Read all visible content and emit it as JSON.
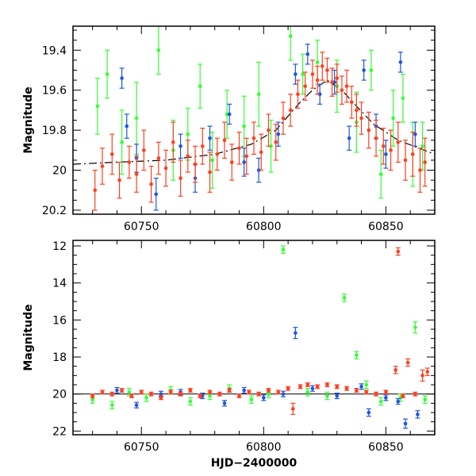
{
  "colors": {
    "green": "#33ff33",
    "blue": "#1f55dd",
    "red": "#ff3f20",
    "curve": "#000000",
    "frame": "#000000"
  },
  "chart_data": [
    {
      "type": "scatter",
      "panel": "top",
      "title": "",
      "xlabel": "",
      "ylabel": "Magnitude",
      "xlim": [
        60722,
        60870
      ],
      "ylim": [
        20.22,
        19.28
      ],
      "y_inverted": true,
      "x_ticks": [
        60750,
        60800,
        60850
      ],
      "y_ticks": [
        19.4,
        19.6,
        19.8,
        20,
        20.2
      ],
      "x_tick_labels": [
        "60750",
        "60800",
        "60850"
      ],
      "y_tick_labels": [
        "19.4",
        "19.6",
        "19.8",
        "20",
        "20.2"
      ],
      "grid": false,
      "legend": "none",
      "model_curve": {
        "style": "dashed-solid",
        "baseline": 19.98,
        "peak_x": 60826,
        "peak_mag": 19.55,
        "tau_days": 16,
        "x": [
          60722,
          60740,
          60760,
          60780,
          60795,
          60805,
          60815,
          60820,
          60826,
          60832,
          60838,
          60845,
          60855,
          60870
        ],
        "y": [
          19.97,
          19.96,
          19.95,
          19.92,
          19.87,
          19.8,
          19.66,
          19.6,
          19.55,
          19.6,
          19.68,
          19.77,
          19.85,
          19.92
        ]
      },
      "series": [
        {
          "color": "green",
          "points": [
            [
              60732,
              19.68,
              0.14
            ],
            [
              60736,
              19.52,
              0.12
            ],
            [
              60742,
              19.86,
              0.16
            ],
            [
              60748,
              19.74,
              0.18
            ],
            [
              60757,
              19.4,
              0.12
            ],
            [
              60763,
              19.9,
              0.15
            ],
            [
              60769,
              19.82,
              0.13
            ],
            [
              60774,
              19.58,
              0.11
            ],
            [
              60779,
              19.95,
              0.14
            ],
            [
              60785,
              19.72,
              0.12
            ],
            [
              60792,
              19.78,
              0.15
            ],
            [
              60798,
              19.62,
              0.16
            ],
            [
              60803,
              19.88,
              0.13
            ],
            [
              60811,
              19.33,
              0.12
            ],
            [
              60816,
              19.52,
              0.1
            ],
            [
              60822,
              19.46,
              0.11
            ],
            [
              60830,
              19.58,
              0.13
            ],
            [
              60838,
              19.76,
              0.15
            ],
            [
              60844,
              19.5,
              0.1
            ],
            [
              60848,
              20.02,
              0.12
            ],
            [
              60853,
              19.74,
              0.14
            ],
            [
              60857,
              19.64,
              0.12
            ],
            [
              60861,
              19.92,
              0.16
            ],
            [
              60865,
              19.88,
              0.12
            ]
          ]
        },
        {
          "color": "blue",
          "points": [
            [
              60742,
              19.54,
              0.05
            ],
            [
              60744,
              19.78,
              0.06
            ],
            [
              60748,
              19.94,
              0.07
            ],
            [
              60756,
              20.12,
              0.08
            ],
            [
              60766,
              19.88,
              0.06
            ],
            [
              60772,
              20.04,
              0.07
            ],
            [
              60778,
              19.84,
              0.06
            ],
            [
              60786,
              19.72,
              0.05
            ],
            [
              60792,
              19.96,
              0.07
            ],
            [
              60798,
              20.0,
              0.06
            ],
            [
              60806,
              19.82,
              0.06
            ],
            [
              60813,
              19.52,
              0.05
            ],
            [
              60818,
              19.42,
              0.05
            ],
            [
              60823,
              19.62,
              0.05
            ],
            [
              60829,
              19.56,
              0.06
            ],
            [
              60835,
              19.84,
              0.06
            ],
            [
              60841,
              19.5,
              0.05
            ],
            [
              60846,
              19.78,
              0.06
            ],
            [
              60850,
              19.92,
              0.07
            ],
            [
              60856,
              19.46,
              0.05
            ],
            [
              60862,
              19.82,
              0.06
            ]
          ]
        },
        {
          "color": "red",
          "points": [
            [
              60731,
              20.1,
              0.1
            ],
            [
              60734,
              19.98,
              0.09
            ],
            [
              60738,
              19.92,
              0.1
            ],
            [
              60741,
              20.05,
              0.09
            ],
            [
              60745,
              19.96,
              0.08
            ],
            [
              60748,
              20.02,
              0.09
            ],
            [
              60751,
              19.9,
              0.1
            ],
            [
              60754,
              20.07,
              0.09
            ],
            [
              60757,
              19.94,
              0.08
            ],
            [
              60760,
              19.99,
              0.09
            ],
            [
              60763,
              19.86,
              0.1
            ],
            [
              60766,
              20.04,
              0.09
            ],
            [
              60769,
              19.93,
              0.08
            ],
            [
              60772,
              19.97,
              0.09
            ],
            [
              60775,
              19.88,
              0.09
            ],
            [
              60778,
              20.01,
              0.1
            ],
            [
              60781,
              19.92,
              0.08
            ],
            [
              60784,
              19.85,
              0.09
            ],
            [
              60787,
              19.96,
              0.09
            ],
            [
              60790,
              19.89,
              0.08
            ],
            [
              60793,
              19.93,
              0.09
            ],
            [
              60796,
              19.84,
              0.08
            ],
            [
              60799,
              19.91,
              0.09
            ],
            [
              60802,
              19.8,
              0.08
            ],
            [
              60805,
              19.86,
              0.09
            ],
            [
              60808,
              19.74,
              0.08
            ],
            [
              60811,
              19.7,
              0.08
            ],
            [
              60814,
              19.62,
              0.07
            ],
            [
              60817,
              19.58,
              0.07
            ],
            [
              60820,
              19.52,
              0.07
            ],
            [
              60822,
              19.55,
              0.07
            ],
            [
              60824,
              19.48,
              0.07
            ],
            [
              60826,
              19.5,
              0.06
            ],
            [
              60828,
              19.56,
              0.07
            ],
            [
              60830,
              19.54,
              0.07
            ],
            [
              60832,
              19.6,
              0.07
            ],
            [
              60834,
              19.58,
              0.08
            ],
            [
              60836,
              19.66,
              0.08
            ],
            [
              60838,
              19.7,
              0.08
            ],
            [
              60840,
              19.74,
              0.08
            ],
            [
              60843,
              19.8,
              0.09
            ],
            [
              60846,
              19.84,
              0.09
            ],
            [
              60849,
              19.88,
              0.09
            ],
            [
              60852,
              19.9,
              0.1
            ],
            [
              60855,
              19.86,
              0.1
            ],
            [
              60858,
              19.95,
              0.1
            ],
            [
              60861,
              19.92,
              0.11
            ],
            [
              60864,
              20.0,
              0.11
            ],
            [
              60866,
              19.96,
              0.12
            ]
          ]
        }
      ]
    },
    {
      "type": "scatter",
      "panel": "bottom",
      "title": "",
      "xlabel": "HJD−2400000",
      "ylabel": "Magnitude",
      "xlim": [
        60722,
        60870
      ],
      "ylim": [
        22.2,
        11.7
      ],
      "y_inverted": true,
      "x_ticks": [
        60750,
        60800,
        60850
      ],
      "y_ticks": [
        12,
        14,
        16,
        18,
        20,
        22
      ],
      "x_tick_labels": [
        "60750",
        "60800",
        "60850"
      ],
      "y_tick_labels": [
        "12",
        "14",
        "16",
        "18",
        "20",
        "22"
      ],
      "grid": false,
      "legend": "none",
      "reference_line": 20.0,
      "series": [
        {
          "color": "green",
          "points": [
            [
              60730,
              20.3,
              0.2
            ],
            [
              60738,
              20.6,
              0.2
            ],
            [
              60745,
              19.9,
              0.2
            ],
            [
              60752,
              20.2,
              0.2
            ],
            [
              60762,
              19.8,
              0.2
            ],
            [
              60770,
              20.4,
              0.2
            ],
            [
              60778,
              20.1,
              0.2
            ],
            [
              60786,
              19.7,
              0.2
            ],
            [
              60795,
              20.3,
              0.2
            ],
            [
              60802,
              20.0,
              0.2
            ],
            [
              60808,
              12.2,
              0.2
            ],
            [
              60818,
              19.9,
              0.2
            ],
            [
              60826,
              20.1,
              0.2
            ],
            [
              60833,
              14.8,
              0.2
            ],
            [
              60838,
              17.9,
              0.2
            ],
            [
              60842,
              19.5,
              0.2
            ],
            [
              60848,
              20.4,
              0.2
            ],
            [
              60856,
              20.2,
              0.2
            ],
            [
              60862,
              16.4,
              0.3
            ],
            [
              60866,
              20.3,
              0.2
            ]
          ]
        },
        {
          "color": "blue",
          "points": [
            [
              60740,
              19.8,
              0.15
            ],
            [
              60748,
              20.6,
              0.15
            ],
            [
              60758,
              20.0,
              0.15
            ],
            [
              60766,
              19.9,
              0.15
            ],
            [
              60775,
              20.1,
              0.15
            ],
            [
              60784,
              20.5,
              0.15
            ],
            [
              60792,
              19.8,
              0.15
            ],
            [
              60800,
              20.2,
              0.15
            ],
            [
              60808,
              20.0,
              0.15
            ],
            [
              60813,
              16.7,
              0.3
            ],
            [
              60820,
              19.7,
              0.15
            ],
            [
              60830,
              20.1,
              0.15
            ],
            [
              60840,
              19.6,
              0.15
            ],
            [
              60843,
              21.0,
              0.2
            ],
            [
              60850,
              20.2,
              0.15
            ],
            [
              60855,
              20.4,
              0.15
            ],
            [
              60858,
              21.6,
              0.25
            ],
            [
              60863,
              21.1,
              0.2
            ]
          ]
        },
        {
          "color": "red",
          "points": [
            [
              60730,
              20.1,
              0.1
            ],
            [
              60734,
              19.9,
              0.1
            ],
            [
              60738,
              20.0,
              0.1
            ],
            [
              60742,
              19.8,
              0.1
            ],
            [
              60746,
              20.1,
              0.1
            ],
            [
              60750,
              19.9,
              0.1
            ],
            [
              60754,
              20.0,
              0.1
            ],
            [
              60758,
              20.2,
              0.1
            ],
            [
              60762,
              19.9,
              0.1
            ],
            [
              60766,
              20.0,
              0.1
            ],
            [
              60770,
              19.8,
              0.1
            ],
            [
              60774,
              20.1,
              0.1
            ],
            [
              60778,
              19.9,
              0.1
            ],
            [
              60782,
              20.0,
              0.1
            ],
            [
              60786,
              19.8,
              0.1
            ],
            [
              60790,
              20.1,
              0.1
            ],
            [
              60794,
              19.9,
              0.1
            ],
            [
              60798,
              20.0,
              0.1
            ],
            [
              60802,
              19.8,
              0.1
            ],
            [
              60806,
              19.9,
              0.1
            ],
            [
              60810,
              19.7,
              0.1
            ],
            [
              60812,
              20.8,
              0.3
            ],
            [
              60815,
              19.6,
              0.1
            ],
            [
              60818,
              19.5,
              0.1
            ],
            [
              60822,
              19.6,
              0.1
            ],
            [
              60826,
              19.5,
              0.1
            ],
            [
              60830,
              19.6,
              0.1
            ],
            [
              60834,
              19.7,
              0.1
            ],
            [
              60838,
              19.8,
              0.1
            ],
            [
              60842,
              19.9,
              0.1
            ],
            [
              60846,
              20.0,
              0.1
            ],
            [
              60850,
              19.9,
              0.1
            ],
            [
              60854,
              18.7,
              0.2
            ],
            [
              60855,
              12.3,
              0.2
            ],
            [
              60857,
              20.1,
              0.1
            ],
            [
              60859,
              18.3,
              0.2
            ],
            [
              60862,
              20.0,
              0.1
            ],
            [
              60865,
              19.0,
              0.3
            ],
            [
              60867,
              18.8,
              0.2
            ]
          ]
        }
      ]
    }
  ]
}
